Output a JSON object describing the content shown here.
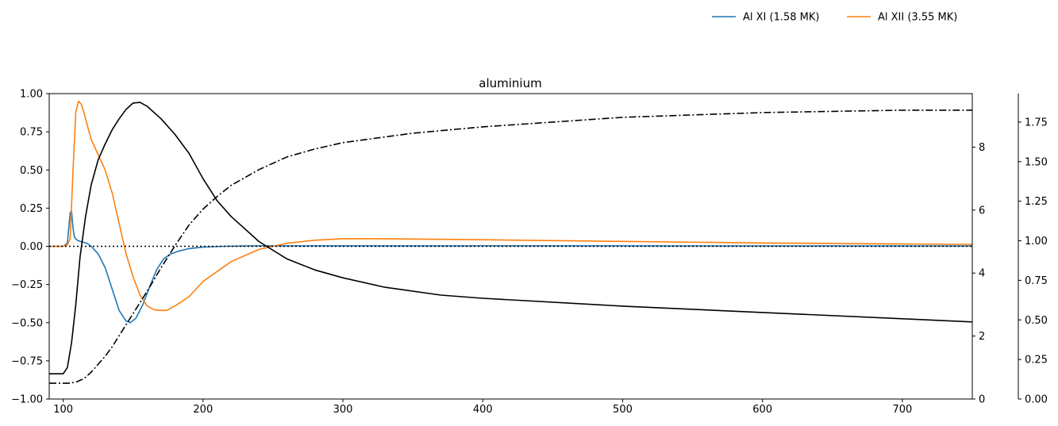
{
  "chart_data": {
    "type": "line",
    "title": "aluminium",
    "xlabel": "",
    "ylabel": "",
    "xlim": [
      90,
      750
    ],
    "ylim": [
      -1.0,
      1.0
    ],
    "grid": false,
    "legend_position": "top-right, outside plot",
    "x_ticks": [
      100,
      200,
      300,
      400,
      500,
      600,
      700
    ],
    "y_ticks": [
      -1.0,
      -0.75,
      -0.5,
      -0.25,
      0.0,
      0.25,
      0.5,
      0.75,
      1.0
    ],
    "y_tick_labels": [
      "−1.00",
      "−0.75",
      "−0.50",
      "−0.25",
      "0.00",
      "0.25",
      "0.50",
      "0.75",
      "1.00"
    ],
    "right_axis_1": {
      "ylim": [
        0,
        9.7
      ],
      "ticks": [
        0,
        2,
        4,
        6,
        8
      ],
      "tick_labels": [
        "0",
        "2",
        "4",
        "6",
        "8"
      ]
    },
    "right_axis_2": {
      "ylim": [
        0,
        1.93
      ],
      "ticks": [
        0.0,
        0.25,
        0.5,
        0.75,
        1.0,
        1.25,
        1.5,
        1.75
      ],
      "tick_labels": [
        "0.00",
        "0.25",
        "0.50",
        "0.75",
        "1.00",
        "1.25",
        "1.50",
        "1.75"
      ]
    },
    "series": [
      {
        "name": "Al XI (1.58 MK)",
        "color": "#1f77b4",
        "style": "solid",
        "axis": "left",
        "x": [
          90,
          100,
          103,
          105,
          106,
          107,
          108,
          110,
          113,
          117,
          120,
          125,
          130,
          135,
          140,
          145,
          148,
          152,
          157,
          162,
          167,
          172,
          177,
          183,
          190,
          200,
          215,
          230,
          250,
          300,
          400,
          500,
          600,
          700,
          750
        ],
        "y": [
          0,
          0,
          0.02,
          0.22,
          0.23,
          0.12,
          0.06,
          0.04,
          0.03,
          0.02,
          0.0,
          -0.05,
          -0.14,
          -0.28,
          -0.42,
          -0.49,
          -0.5,
          -0.47,
          -0.38,
          -0.26,
          -0.15,
          -0.08,
          -0.05,
          -0.03,
          -0.015,
          -0.005,
          0.0,
          0.002,
          0.003,
          0.003,
          0.003,
          0.003,
          0.002,
          0.002,
          0.002
        ]
      },
      {
        "name": "Al XII (3.55 MK)",
        "color": "#ff7f0e",
        "style": "solid",
        "axis": "left",
        "x": [
          90,
          100,
          103,
          105,
          107,
          109,
          111,
          113,
          115,
          117,
          120,
          125,
          130,
          135,
          140,
          145,
          150,
          155,
          160,
          165,
          170,
          174,
          180,
          190,
          200,
          220,
          240,
          260,
          280,
          300,
          320,
          350,
          400,
          500,
          600,
          700,
          750
        ],
        "y": [
          0,
          0,
          0.01,
          0.05,
          0.5,
          0.88,
          0.95,
          0.93,
          0.87,
          0.8,
          0.7,
          0.6,
          0.5,
          0.35,
          0.15,
          -0.05,
          -0.2,
          -0.32,
          -0.39,
          -0.415,
          -0.42,
          -0.42,
          -0.39,
          -0.33,
          -0.23,
          -0.1,
          -0.02,
          0.02,
          0.04,
          0.05,
          0.05,
          0.048,
          0.043,
          0.032,
          0.022,
          0.015,
          0.013
        ]
      },
      {
        "name": "",
        "color": "#000000",
        "style": "solid",
        "axis": "right_1",
        "x": [
          90,
          100,
          103,
          106,
          109,
          112,
          116,
          120,
          125,
          130,
          135,
          140,
          145,
          150,
          155,
          160,
          170,
          180,
          190,
          200,
          210,
          220,
          240,
          260,
          280,
          300,
          330,
          370,
          400,
          500,
          600,
          700,
          750
        ],
        "y": [
          0.8,
          0.8,
          1.0,
          1.8,
          3.0,
          4.5,
          5.8,
          6.8,
          7.6,
          8.1,
          8.55,
          8.9,
          9.2,
          9.4,
          9.42,
          9.3,
          8.9,
          8.4,
          7.8,
          7.0,
          6.3,
          5.8,
          5.0,
          4.45,
          4.1,
          3.85,
          3.55,
          3.3,
          3.2,
          2.95,
          2.75,
          2.55,
          2.45
        ]
      },
      {
        "name": "",
        "color": "#000000",
        "style": "dashdot",
        "axis": "right_2",
        "x": [
          90,
          100,
          105,
          110,
          115,
          120,
          125,
          130,
          135,
          140,
          145,
          150,
          155,
          160,
          170,
          180,
          190,
          200,
          210,
          220,
          240,
          260,
          280,
          300,
          350,
          400,
          500,
          600,
          700,
          750
        ],
        "y": [
          0.1,
          0.1,
          0.1,
          0.11,
          0.13,
          0.17,
          0.22,
          0.27,
          0.33,
          0.4,
          0.47,
          0.54,
          0.61,
          0.68,
          0.83,
          0.97,
          1.1,
          1.2,
          1.28,
          1.35,
          1.45,
          1.53,
          1.58,
          1.62,
          1.68,
          1.72,
          1.78,
          1.81,
          1.825,
          1.825
        ]
      },
      {
        "name": "",
        "color": "#000000",
        "style": "dotted",
        "axis": "left",
        "x": [
          90,
          750
        ],
        "y": [
          0,
          0
        ]
      }
    ]
  }
}
